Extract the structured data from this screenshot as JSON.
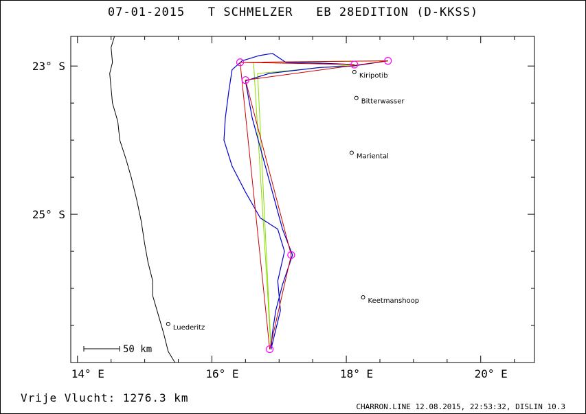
{
  "header": {
    "title": "07-01-2015   T SCHMELZER   EB 28EDITION (D-KKSS)"
  },
  "map": {
    "lon_range": [
      13.9,
      20.8
    ],
    "lat_range": [
      -27.0,
      -22.6
    ],
    "lon_ticks": [
      {
        "value": 14,
        "label": "14° E"
      },
      {
        "value": 16,
        "label": "16° E"
      },
      {
        "value": 18,
        "label": "18° E"
      },
      {
        "value": 20,
        "label": "20° E"
      }
    ],
    "lat_ticks": [
      {
        "value": -23,
        "label": "23° S"
      },
      {
        "value": -25,
        "label": "25° S"
      }
    ],
    "colors": {
      "coast": "#000000",
      "track": "#0000cc",
      "task": "#cc0000",
      "legs": "#88dd00",
      "turnpoint": "#ff00ff"
    },
    "towns": [
      {
        "name": "Kiripotib",
        "lon": 18.12,
        "lat": -23.08
      },
      {
        "name": "Bitterwasser",
        "lon": 18.15,
        "lat": -23.43
      },
      {
        "name": "Mariental",
        "lon": 18.08,
        "lat": -24.17
      },
      {
        "name": "Keetmanshoop",
        "lon": 18.25,
        "lat": -26.12
      },
      {
        "name": "Luederitz",
        "lon": 15.35,
        "lat": -26.48
      }
    ],
    "turnpoints": [
      {
        "lon": 16.42,
        "lat": -22.95
      },
      {
        "lon": 18.62,
        "lat": -22.93
      },
      {
        "lon": 18.12,
        "lat": -22.98
      },
      {
        "lon": 16.5,
        "lat": -23.19
      },
      {
        "lon": 17.18,
        "lat": -25.55
      },
      {
        "lon": 16.86,
        "lat": -26.82
      }
    ],
    "task_route": [
      {
        "lon": 18.12,
        "lat": -22.98
      },
      {
        "lon": 16.42,
        "lat": -22.95
      },
      {
        "lon": 18.62,
        "lat": -22.93
      },
      {
        "lon": 16.5,
        "lat": -23.19
      },
      {
        "lon": 17.18,
        "lat": -25.55
      },
      {
        "lon": 16.86,
        "lat": -26.82
      },
      {
        "lon": 16.42,
        "lat": -22.95
      }
    ],
    "legs_route": [
      {
        "lon": 18.62,
        "lat": -22.93
      },
      {
        "lon": 16.62,
        "lat": -22.95
      },
      {
        "lon": 16.88,
        "lat": -26.82
      },
      {
        "lon": 16.68,
        "lat": -23.1
      },
      {
        "lon": 18.12,
        "lat": -22.98
      }
    ],
    "track": [
      {
        "lon": 18.12,
        "lat": -22.98
      },
      {
        "lon": 17.6,
        "lat": -22.96
      },
      {
        "lon": 17.1,
        "lat": -22.95
      },
      {
        "lon": 16.9,
        "lat": -22.83
      },
      {
        "lon": 16.7,
        "lat": -22.86
      },
      {
        "lon": 16.45,
        "lat": -22.93
      },
      {
        "lon": 16.3,
        "lat": -23.05
      },
      {
        "lon": 16.25,
        "lat": -23.35
      },
      {
        "lon": 16.2,
        "lat": -23.7
      },
      {
        "lon": 16.18,
        "lat": -24.0
      },
      {
        "lon": 16.3,
        "lat": -24.35
      },
      {
        "lon": 16.5,
        "lat": -24.7
      },
      {
        "lon": 16.72,
        "lat": -25.05
      },
      {
        "lon": 16.98,
        "lat": -25.2
      },
      {
        "lon": 17.08,
        "lat": -25.5
      },
      {
        "lon": 16.98,
        "lat": -25.9
      },
      {
        "lon": 17.02,
        "lat": -26.3
      },
      {
        "lon": 16.88,
        "lat": -26.82
      },
      {
        "lon": 16.9,
        "lat": -26.6
      },
      {
        "lon": 16.95,
        "lat": -26.3
      },
      {
        "lon": 17.05,
        "lat": -25.95
      },
      {
        "lon": 17.2,
        "lat": -25.55
      },
      {
        "lon": 17.05,
        "lat": -25.2
      },
      {
        "lon": 16.9,
        "lat": -24.7
      },
      {
        "lon": 16.75,
        "lat": -24.2
      },
      {
        "lon": 16.6,
        "lat": -23.7
      },
      {
        "lon": 16.5,
        "lat": -23.2
      },
      {
        "lon": 16.85,
        "lat": -23.1
      },
      {
        "lon": 17.6,
        "lat": -23.02
      },
      {
        "lon": 18.1,
        "lat": -23.0
      },
      {
        "lon": 18.62,
        "lat": -22.93
      }
    ],
    "coastline": [
      {
        "lon": 14.55,
        "lat": -22.6
      },
      {
        "lon": 14.5,
        "lat": -22.75
      },
      {
        "lon": 14.52,
        "lat": -22.95
      },
      {
        "lon": 14.48,
        "lat": -23.1
      },
      {
        "lon": 14.5,
        "lat": -23.3
      },
      {
        "lon": 14.52,
        "lat": -23.5
      },
      {
        "lon": 14.6,
        "lat": -23.75
      },
      {
        "lon": 14.63,
        "lat": -24.0
      },
      {
        "lon": 14.72,
        "lat": -24.25
      },
      {
        "lon": 14.8,
        "lat": -24.5
      },
      {
        "lon": 14.88,
        "lat": -24.8
      },
      {
        "lon": 14.95,
        "lat": -25.1
      },
      {
        "lon": 15.0,
        "lat": -25.4
      },
      {
        "lon": 15.05,
        "lat": -25.65
      },
      {
        "lon": 15.12,
        "lat": -25.9
      },
      {
        "lon": 15.12,
        "lat": -26.1
      },
      {
        "lon": 15.2,
        "lat": -26.35
      },
      {
        "lon": 15.28,
        "lat": -26.6
      },
      {
        "lon": 15.35,
        "lat": -26.85
      },
      {
        "lon": 15.45,
        "lat": -27.0
      }
    ],
    "scale_bar": {
      "label": "50 km"
    }
  },
  "summary": {
    "text": "Vrije Vlucht: 1276.3 km"
  },
  "footer": {
    "text": "CHARRON.LINE 12.08.2015, 22:53:32, DISLIN 10.3"
  }
}
